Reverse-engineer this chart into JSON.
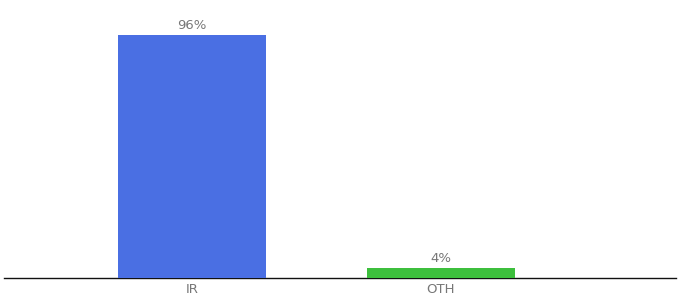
{
  "categories": [
    "IR",
    "OTH"
  ],
  "values": [
    96,
    4
  ],
  "bar_colors": [
    "#4a6fe3",
    "#3dbf3d"
  ],
  "label_texts": [
    "96%",
    "4%"
  ],
  "background_color": "#ffffff",
  "text_color": "#777777",
  "label_fontsize": 9.5,
  "tick_fontsize": 9.5,
  "ylim": [
    0,
    108
  ],
  "xlim": [
    0,
    1.0
  ],
  "bar_width": 0.22,
  "x_positions": [
    0.28,
    0.65
  ],
  "figsize": [
    6.8,
    3.0
  ],
  "dpi": 100
}
